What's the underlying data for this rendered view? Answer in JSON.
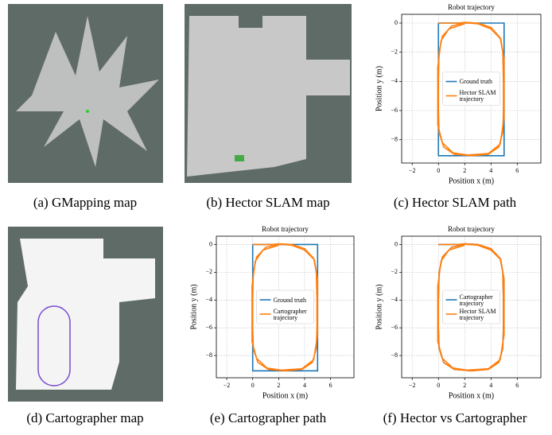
{
  "captions": [
    "(a) GMapping map",
    "(b) Hector SLAM map",
    "(c) Hector SLAM path",
    "(d) Cartographer map",
    "(e) Cartographer path",
    "(f) Hector vs Cartographer"
  ],
  "chart_data": [
    {
      "type": "line",
      "title": "Robot trajectory",
      "xlabel": "Position x (m)",
      "ylabel": "Position y (m)",
      "xlim": [
        -2.8,
        7.8
      ],
      "ylim": [
        -9.6,
        0.6
      ],
      "xticks": [
        {
          "value": -2,
          "label": "−2"
        },
        0,
        2,
        4,
        6
      ],
      "yticks": [
        0,
        {
          "value": -2,
          "label": "−2"
        },
        {
          "value": -4,
          "label": "−4"
        },
        {
          "value": -6,
          "label": "−6"
        },
        {
          "value": -8,
          "label": "−8"
        }
      ],
      "grid": true,
      "legend": "center",
      "series": [
        {
          "name": "Ground truth",
          "color": "#1f77b4",
          "x": [
            0,
            5,
            5,
            0,
            0
          ],
          "values": [
            0,
            0,
            -9.1,
            -9.1,
            0
          ]
        },
        {
          "name": "Hector SLAM trajectory",
          "color": "#ff7f0e",
          "x": [
            0,
            1.5,
            2,
            3,
            4,
            4.7,
            4.9,
            4.95,
            4.95,
            4.9,
            4.6,
            3.8,
            2.5,
            1.2,
            0.4,
            0.05,
            0,
            0,
            0.05,
            0.3,
            1,
            2,
            3,
            4,
            4.75,
            5,
            5,
            4.7,
            3.8,
            2.2,
            1.1,
            0.3,
            -0.05,
            -0.05,
            0.2,
            0.8,
            2
          ],
          "values": [
            0,
            0,
            0.05,
            0,
            -0.3,
            -1,
            -2,
            -4,
            -6,
            -7.5,
            -8.5,
            -9,
            -9.1,
            -9,
            -8.5,
            -7.5,
            -6,
            -4,
            -2,
            -0.9,
            -0.2,
            0.02,
            -0.05,
            -0.4,
            -1.1,
            -2.5,
            -6.5,
            -8.3,
            -8.95,
            -9.05,
            -8.9,
            -8.2,
            -7,
            -3,
            -1.2,
            -0.4,
            -0.05
          ]
        }
      ]
    },
    {
      "type": "line",
      "title": "Robot trajectory",
      "xlabel": "Position x (m)",
      "ylabel": "Position y (m)",
      "xlim": [
        -2.8,
        7.8
      ],
      "ylim": [
        -9.6,
        0.6
      ],
      "xticks": [
        {
          "value": -2,
          "label": "−2"
        },
        0,
        2,
        4,
        6
      ],
      "yticks": [
        0,
        {
          "value": -2,
          "label": "−2"
        },
        {
          "value": -4,
          "label": "−4"
        },
        {
          "value": -6,
          "label": "−6"
        },
        {
          "value": -8,
          "label": "−8"
        }
      ],
      "grid": true,
      "legend": "center",
      "series": [
        {
          "name": "Ground truth",
          "color": "#1f77b4",
          "x": [
            0,
            5,
            5,
            0,
            0
          ],
          "values": [
            0,
            0,
            -9.1,
            -9.1,
            0
          ]
        },
        {
          "name": "Cartographer trajectory",
          "color": "#ff7f0e",
          "x": [
            0,
            1.5,
            2,
            3,
            4,
            4.7,
            4.9,
            4.95,
            4.95,
            4.9,
            4.6,
            3.8,
            2.5,
            1.2,
            0.4,
            0.05,
            0,
            0,
            0.05,
            0.3,
            1,
            2,
            3,
            4,
            4.75,
            5,
            5,
            4.7,
            3.8,
            2.2,
            1.1,
            0.3,
            -0.05,
            -0.05,
            0.2,
            0.8,
            2
          ],
          "values": [
            0,
            0,
            0.05,
            0,
            -0.3,
            -1,
            -2,
            -4,
            -6,
            -7.5,
            -8.5,
            -9,
            -9.1,
            -9,
            -8.5,
            -7.5,
            -6,
            -4,
            -2,
            -0.9,
            -0.2,
            0.02,
            -0.05,
            -0.4,
            -1.1,
            -2.5,
            -6.5,
            -8.3,
            -8.95,
            -9.05,
            -8.9,
            -8.2,
            -7,
            -3,
            -1.2,
            -0.4,
            -0.05
          ]
        }
      ]
    },
    {
      "type": "line",
      "title": "Robot trajectory",
      "xlabel": "Position x (m)",
      "ylabel": "Position y (m)",
      "xlim": [
        -2.8,
        7.8
      ],
      "ylim": [
        -9.6,
        0.6
      ],
      "xticks": [
        {
          "value": -2,
          "label": "−2"
        },
        0,
        2,
        4,
        6
      ],
      "yticks": [
        0,
        {
          "value": -2,
          "label": "−2"
        },
        {
          "value": -4,
          "label": "−4"
        },
        {
          "value": -6,
          "label": "−6"
        },
        {
          "value": -8,
          "label": "−8"
        }
      ],
      "grid": true,
      "legend": "center",
      "series": [
        {
          "name": "Cartographer trajectory",
          "color": "#1f77b4",
          "x": [
            0,
            1.5,
            2,
            3,
            4,
            4.7,
            4.9,
            4.95,
            4.95,
            4.9,
            4.6,
            3.8,
            2.5,
            1.2,
            0.4,
            0.05,
            0,
            0,
            0.05,
            0.3,
            1,
            2
          ],
          "values": [
            0,
            0,
            0.05,
            0,
            -0.3,
            -1,
            -2,
            -4,
            -6,
            -7.5,
            -8.5,
            -9,
            -9.1,
            -9,
            -8.5,
            -7.5,
            -6,
            -4,
            -2,
            -0.9,
            -0.2,
            0.02
          ]
        },
        {
          "name": "Hector SLAM trajectory",
          "color": "#ff7f0e",
          "x": [
            0,
            1.5,
            2,
            3,
            4,
            4.7,
            4.9,
            4.95,
            4.95,
            4.9,
            4.6,
            3.8,
            2.5,
            1.2,
            0.4,
            0.05,
            0,
            0,
            0.05,
            0.3,
            1,
            2,
            3,
            4,
            4.75,
            5,
            5,
            4.7,
            3.8,
            2.2,
            1.1,
            0.3,
            -0.05,
            -0.05,
            0.2,
            0.8,
            2
          ],
          "values": [
            0,
            0,
            0.05,
            0,
            -0.3,
            -1,
            -2,
            -4,
            -6,
            -7.5,
            -8.5,
            -9,
            -9.1,
            -9,
            -8.5,
            -7.5,
            -6,
            -4,
            -2,
            -0.9,
            -0.2,
            0.02,
            -0.05,
            -0.4,
            -1.1,
            -2.5,
            -6.5,
            -8.3,
            -8.95,
            -9.05,
            -8.9,
            -8.2,
            -7,
            -3,
            -1.2,
            -0.4,
            -0.05
          ]
        }
      ]
    }
  ]
}
